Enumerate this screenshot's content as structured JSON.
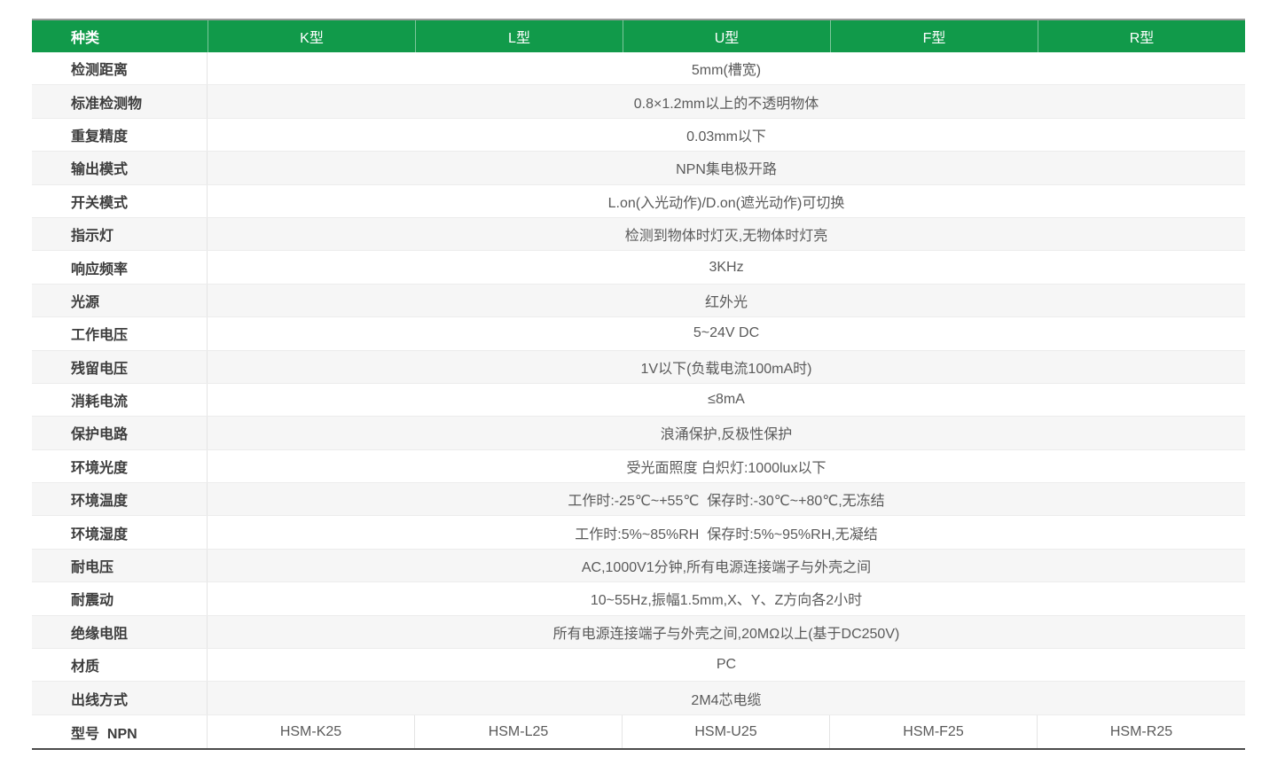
{
  "colors": {
    "header_green": "#119a4a",
    "stripe_gray": "#f6f6f6",
    "bottom_border": "#4c4c4c"
  },
  "table": {
    "header": {
      "category_label": "种类",
      "columns": [
        "K型",
        "L型",
        "U型",
        "F型",
        "R型"
      ]
    },
    "rows": [
      {
        "label": "检测距离",
        "value": "5mm(槽宽)"
      },
      {
        "label": "标准检测物",
        "value": "0.8×1.2mm以上的不透明物体"
      },
      {
        "label": "重复精度",
        "value": "0.03mm以下"
      },
      {
        "label": "输出模式",
        "value": "NPN集电极开路"
      },
      {
        "label": "开关模式",
        "value": "L.on(入光动作)/D.on(遮光动作)可切换"
      },
      {
        "label": "指示灯",
        "value": "检测到物体时灯灭,无物体时灯亮"
      },
      {
        "label": "响应频率",
        "value": "3KHz"
      },
      {
        "label": "光源",
        "value": "红外光"
      },
      {
        "label": "工作电压",
        "value": "5~24V DC"
      },
      {
        "label": "残留电压",
        "value": "1V以下(负载电流100mA时)"
      },
      {
        "label": "消耗电流",
        "value": "≤8mA"
      },
      {
        "label": "保护电路",
        "value": "浪涌保护,反极性保护"
      },
      {
        "label": "环境光度",
        "value": "受光面照度 白炽灯:1000lux以下"
      },
      {
        "label": "环境温度",
        "value": "工作时:-25℃~+55℃  保存时:-30℃~+80℃,无冻结"
      },
      {
        "label": "环境湿度",
        "value": "工作时:5%~85%RH  保存时:5%~95%RH,无凝结"
      },
      {
        "label": "耐电压",
        "value": "AC,1000V1分钟,所有电源连接端子与外壳之间"
      },
      {
        "label": "耐震动",
        "value": "10~55Hz,振幅1.5mm,X、Y、Z方向各2小时"
      },
      {
        "label": "绝缘电阻",
        "value": "所有电源连接端子与外壳之间,20MΩ以上(基于DC250V)"
      },
      {
        "label": "材质",
        "value": "PC"
      },
      {
        "label": "出线方式",
        "value": "2M4芯电缆"
      }
    ],
    "model_row": {
      "label": "型号  NPN",
      "models": [
        "HSM-K25",
        "HSM-L25",
        "HSM-U25",
        "HSM-F25",
        "HSM-R25"
      ]
    }
  }
}
